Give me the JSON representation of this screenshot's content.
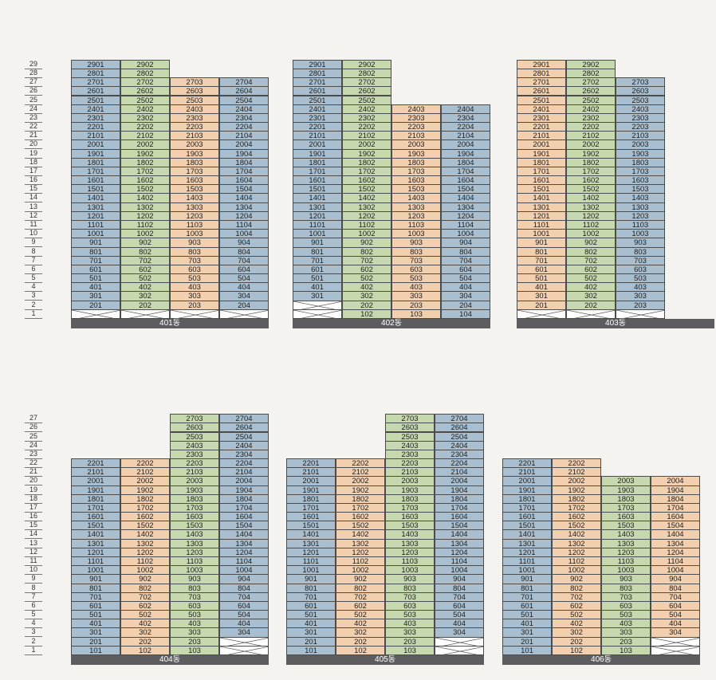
{
  "colors": {
    "blue": "#a9bfcf",
    "green": "#c5d8ae",
    "orange": "#f2cfaf",
    "empty": "#ffffff",
    "namebar": "#5d5d5f"
  },
  "floor_axes": [
    {
      "floors": [
        29,
        28,
        27,
        26,
        25,
        24,
        23,
        22,
        21,
        20,
        19,
        18,
        17,
        16,
        15,
        14,
        13,
        12,
        11,
        10,
        9,
        8,
        7,
        6,
        5,
        4,
        3,
        2,
        1
      ]
    },
    {
      "floors": [
        27,
        26,
        25,
        24,
        23,
        22,
        21,
        20,
        19,
        18,
        17,
        16,
        15,
        14,
        13,
        12,
        11,
        10,
        9,
        8,
        7,
        6,
        5,
        4,
        3,
        2,
        1
      ]
    }
  ],
  "buildings": [
    {
      "name": "401동",
      "columns": [
        {
          "unit": 1,
          "top": 29,
          "bottom": 2,
          "empty_floors": [
            1
          ],
          "color": "blue"
        },
        {
          "unit": 2,
          "top": 29,
          "bottom": 2,
          "empty_floors": [
            1
          ],
          "color": "green"
        },
        {
          "unit": 3,
          "top": 27,
          "bottom": 2,
          "empty_floors": [
            1
          ],
          "color": "orange"
        },
        {
          "unit": 4,
          "top": 27,
          "bottom": 2,
          "empty_floors": [
            1
          ],
          "color": "blue"
        }
      ]
    },
    {
      "name": "402동",
      "columns": [
        {
          "unit": 1,
          "top": 29,
          "bottom": 3,
          "empty_floors": [
            2,
            1
          ],
          "color": "blue"
        },
        {
          "unit": 2,
          "top": 29,
          "bottom": 1,
          "empty_floors": [],
          "color": "green"
        },
        {
          "unit": 3,
          "top": 24,
          "bottom": 1,
          "empty_floors": [],
          "color": "orange"
        },
        {
          "unit": 4,
          "top": 24,
          "bottom": 1,
          "empty_floors": [],
          "color": "blue"
        }
      ]
    },
    {
      "name": "403동",
      "columns": [
        {
          "unit": 1,
          "top": 29,
          "bottom": 2,
          "empty_floors": [
            1
          ],
          "color": "orange"
        },
        {
          "unit": 2,
          "top": 29,
          "bottom": 2,
          "empty_floors": [
            1
          ],
          "color": "green"
        },
        {
          "unit": 3,
          "top": 27,
          "bottom": 2,
          "empty_floors": [
            1
          ],
          "color": "blue"
        }
      ]
    },
    {
      "name": "404동",
      "columns": [
        {
          "unit": 1,
          "top": 22,
          "bottom": 1,
          "empty_floors": [],
          "color": "blue"
        },
        {
          "unit": 2,
          "top": 22,
          "bottom": 1,
          "empty_floors": [],
          "color": "orange"
        },
        {
          "unit": 3,
          "top": 27,
          "bottom": 1,
          "empty_floors": [],
          "color": "green"
        },
        {
          "unit": 4,
          "top": 27,
          "bottom": 3,
          "empty_floors": [
            2,
            1
          ],
          "color": "blue"
        }
      ]
    },
    {
      "name": "405동",
      "columns": [
        {
          "unit": 1,
          "top": 22,
          "bottom": 1,
          "empty_floors": [],
          "color": "blue"
        },
        {
          "unit": 2,
          "top": 22,
          "bottom": 1,
          "empty_floors": [],
          "color": "orange"
        },
        {
          "unit": 3,
          "top": 27,
          "bottom": 1,
          "empty_floors": [],
          "color": "green"
        },
        {
          "unit": 4,
          "top": 27,
          "bottom": 3,
          "empty_floors": [
            2,
            1
          ],
          "color": "blue"
        }
      ]
    },
    {
      "name": "406동",
      "columns": [
        {
          "unit": 1,
          "top": 22,
          "bottom": 1,
          "empty_floors": [],
          "color": "blue"
        },
        {
          "unit": 2,
          "top": 22,
          "bottom": 1,
          "empty_floors": [],
          "color": "orange"
        },
        {
          "unit": 3,
          "top": 20,
          "bottom": 1,
          "empty_floors": [],
          "color": "green"
        },
        {
          "unit": 4,
          "top": 20,
          "bottom": 3,
          "empty_floors": [
            2,
            1
          ],
          "color": "orange"
        }
      ]
    }
  ]
}
